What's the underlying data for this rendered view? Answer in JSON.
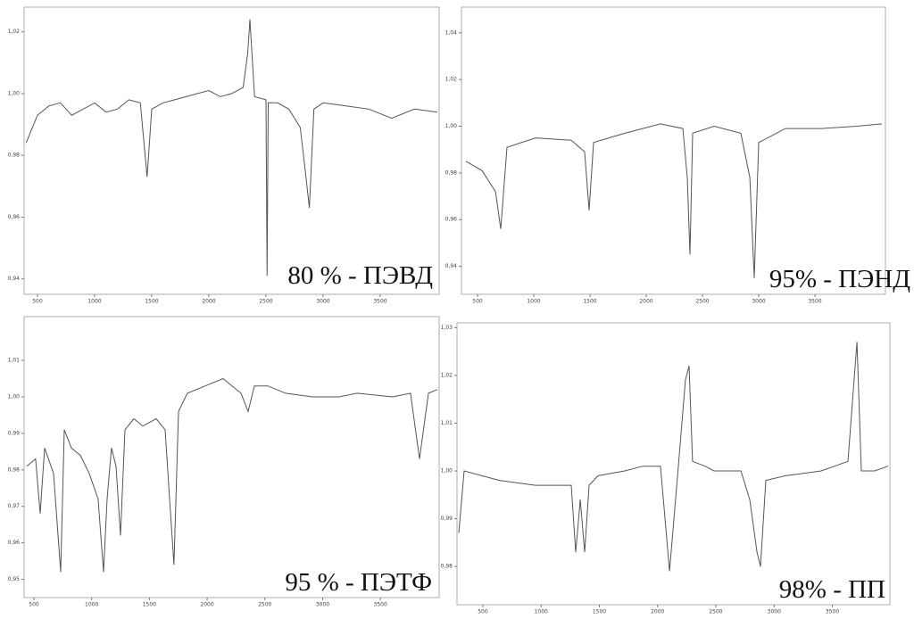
{
  "chart_data": [
    {
      "type": "line",
      "title": "80 % - ПЭВД",
      "color": "#555555",
      "x": [
        400,
        500,
        600,
        700,
        800,
        900,
        1000,
        1100,
        1200,
        1300,
        1400,
        1460,
        1500,
        1600,
        1700,
        1800,
        1900,
        2000,
        2100,
        2200,
        2300,
        2340,
        2360,
        2400,
        2500,
        2510,
        2520,
        2600,
        2700,
        2800,
        2850,
        2880,
        2920,
        3000,
        3200,
        3400,
        3600,
        3800,
        4000
      ],
      "values": [
        0.984,
        0.993,
        0.996,
        0.997,
        0.993,
        0.995,
        0.997,
        0.994,
        0.995,
        0.998,
        0.997,
        0.973,
        0.995,
        0.997,
        0.998,
        0.999,
        1.0,
        1.001,
        0.999,
        1.0,
        1.002,
        1.013,
        1.024,
        0.999,
        0.998,
        0.941,
        0.997,
        0.997,
        0.995,
        0.989,
        0.973,
        0.963,
        0.995,
        0.997,
        0.996,
        0.995,
        0.992,
        0.995,
        0.994
      ],
      "xlim": [
        383,
        4016
      ],
      "xticks": [
        500,
        1000,
        1500,
        2000,
        2500,
        3000,
        3500
      ],
      "ylim": [
        0.935,
        1.028
      ],
      "yticks": [
        {
          "value": 0.94,
          "label": "0,94"
        },
        {
          "value": 0.96,
          "label": "0,96"
        },
        {
          "value": 0.98,
          "label": "0,98"
        },
        {
          "value": 1.0,
          "label": "1,00"
        },
        {
          "value": 1.02,
          "label": "1,02"
        }
      ]
    },
    {
      "type": "line",
      "title": "95% - ПЭНД",
      "color": "#555555",
      "x": [
        397,
        540,
        659,
        706,
        762,
        1016,
        1333,
        1452,
        1492,
        1532,
        1810,
        2127,
        2325,
        2365,
        2389,
        2413,
        2603,
        2841,
        2921,
        2960,
        3000,
        3238,
        3556,
        3873,
        4095
      ],
      "values": [
        0.985,
        0.981,
        0.972,
        0.956,
        0.991,
        0.995,
        0.994,
        0.989,
        0.964,
        0.993,
        0.997,
        1.001,
        0.999,
        0.978,
        0.945,
        0.997,
        1.0,
        0.997,
        0.978,
        0.935,
        0.993,
        0.999,
        0.999,
        1.0,
        1.001
      ],
      "xlim": [
        357,
        4127
      ],
      "xticks": [
        500,
        1000,
        1500,
        2000,
        2500,
        3000,
        3500
      ],
      "ylim": [
        0.928,
        1.051
      ],
      "yticks": [
        {
          "value": 0.94,
          "label": "0,94"
        },
        {
          "value": 0.96,
          "label": "0,96"
        },
        {
          "value": 0.98,
          "label": "0,98"
        },
        {
          "value": 1.0,
          "label": "1,00"
        },
        {
          "value": 1.02,
          "label": "1,02"
        },
        {
          "value": 1.04,
          "label": "1,04"
        }
      ]
    },
    {
      "type": "line",
      "title": "95 % - ПЭТФ",
      "color": "#555555",
      "x": [
        438,
        515,
        554,
        593,
        670,
        732,
        763,
        825,
        902,
        979,
        1056,
        1103,
        1134,
        1172,
        1211,
        1250,
        1288,
        1366,
        1443,
        1559,
        1636,
        1675,
        1713,
        1752,
        1829,
        1984,
        2138,
        2293,
        2355,
        2409,
        2525,
        2679,
        2911,
        3143,
        3298,
        3607,
        3761,
        3839,
        3916,
        3993
      ],
      "values": [
        0.981,
        0.983,
        0.968,
        0.986,
        0.979,
        0.952,
        0.991,
        0.986,
        0.984,
        0.979,
        0.972,
        0.952,
        0.972,
        0.986,
        0.981,
        0.962,
        0.991,
        0.994,
        0.992,
        0.994,
        0.991,
        0.972,
        0.954,
        0.996,
        1.001,
        1.003,
        1.005,
        1.001,
        0.996,
        1.003,
        1.003,
        1.001,
        1.0,
        1.0,
        1.001,
        1.0,
        1.001,
        0.983,
        1.001,
        1.002
      ],
      "xlim": [
        415,
        4009
      ],
      "xticks": [
        500,
        1000,
        1500,
        2000,
        2500,
        3000,
        3500
      ],
      "ylim": [
        0.945,
        1.022
      ],
      "yticks": [
        {
          "value": 0.95,
          "label": "0,95"
        },
        {
          "value": 0.96,
          "label": "0,96"
        },
        {
          "value": 0.97,
          "label": "0,97"
        },
        {
          "value": 0.98,
          "label": "0,98"
        },
        {
          "value": 0.99,
          "label": "0,99"
        },
        {
          "value": 1.0,
          "label": "1,00"
        },
        {
          "value": 1.01,
          "label": "1,01"
        }
      ]
    },
    {
      "type": "line",
      "title": "98% - ПП",
      "color": "#555555",
      "x": [
        293,
        339,
        492,
        646,
        952,
        1259,
        1297,
        1336,
        1374,
        1412,
        1489,
        1718,
        1872,
        2025,
        2102,
        2178,
        2239,
        2270,
        2300,
        2408,
        2484,
        2715,
        2791,
        2853,
        2883,
        2929,
        3098,
        3404,
        3634,
        3711,
        3749,
        3864,
        3979
      ],
      "values": [
        0.987,
        1.0,
        0.999,
        0.998,
        0.997,
        0.997,
        0.983,
        0.994,
        0.983,
        0.997,
        0.999,
        1.0,
        1.001,
        1.001,
        0.979,
        1.001,
        1.019,
        1.022,
        1.002,
        1.001,
        1.0,
        1.0,
        0.994,
        0.983,
        0.98,
        0.998,
        0.999,
        1.0,
        1.002,
        1.027,
        1.0,
        1.0,
        1.001
      ],
      "xlim": [
        278,
        3994
      ],
      "xticks": [
        500,
        1000,
        1500,
        2000,
        2500,
        3000,
        3500
      ],
      "ylim": [
        0.972,
        1.031
      ],
      "yticks": [
        {
          "value": 0.98,
          "label": "0,98"
        },
        {
          "value": 0.99,
          "label": "0,99"
        },
        {
          "value": 1.0,
          "label": "1,00"
        },
        {
          "value": 1.01,
          "label": "1,01"
        },
        {
          "value": 1.02,
          "label": "1,02"
        },
        {
          "value": 1.03,
          "label": "1,03"
        }
      ]
    }
  ]
}
